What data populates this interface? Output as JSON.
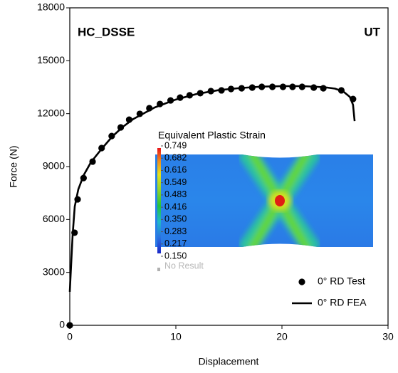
{
  "chart_data": {
    "type": "line",
    "xlabel": "Displacement",
    "ylabel": "Force (N)",
    "annotations": [
      "HC_DSSE",
      "UT"
    ],
    "xlim": [
      0,
      30
    ],
    "xticks": [
      0,
      10,
      20,
      30
    ],
    "ylim": [
      0,
      18000
    ],
    "yticks": [
      0,
      3000,
      6000,
      9000,
      12000,
      15000,
      18000
    ],
    "legend": "lower right",
    "series": [
      {
        "name": "0° RD Test",
        "color": "#000000",
        "marker": "circle",
        "x": [
          0,
          0.45,
          0.74,
          1.3,
          2.15,
          3.0,
          3.95,
          4.8,
          5.6,
          6.6,
          7.5,
          8.5,
          9.5,
          10.4,
          11.3,
          12.3,
          13.3,
          14.3,
          15.2,
          16.2,
          17.2,
          18.1,
          19.1,
          20.1,
          21.0,
          21.9,
          23.0,
          23.9,
          25.6,
          26.7
        ],
        "values": [
          0,
          5250,
          7140,
          8350,
          9280,
          10050,
          10730,
          11220,
          11660,
          11990,
          12310,
          12550,
          12750,
          12910,
          13040,
          13160,
          13280,
          13320,
          13400,
          13440,
          13480,
          13520,
          13520,
          13520,
          13520,
          13520,
          13480,
          13440,
          13320,
          12830
        ]
      },
      {
        "name": "0° RD FEA",
        "color": "#000000",
        "marker": "line",
        "x": [
          0,
          0.1,
          0.27,
          0.47,
          0.8,
          1.3,
          2.0,
          3.0,
          4.0,
          5.0,
          6.0,
          8.0,
          10.0,
          12.0,
          14.0,
          16.0,
          18.0,
          20.0,
          22.0,
          24.0,
          25.0,
          25.8,
          26.4,
          26.7,
          26.85
        ],
        "values": [
          1900,
          3100,
          5130,
          6740,
          7700,
          8500,
          9250,
          10000,
          10700,
          11250,
          11700,
          12350,
          12800,
          13120,
          13330,
          13450,
          13530,
          13560,
          13560,
          13500,
          13420,
          13250,
          12950,
          12500,
          11580
        ]
      }
    ],
    "inset": {
      "title": "Equivalent Plastic Strain",
      "scale_labels": [
        {
          "value": 0.749,
          "label": "0.749"
        },
        {
          "value": 0.682,
          "label": "0.682"
        },
        {
          "value": 0.616,
          "label": "0.616"
        },
        {
          "value": 0.549,
          "label": "0.549"
        },
        {
          "value": 0.483,
          "label": "0.483"
        },
        {
          "value": 0.416,
          "label": "0.416"
        },
        {
          "value": 0.35,
          "label": "0.350"
        },
        {
          "value": 0.283,
          "label": "0.283"
        },
        {
          "value": 0.217,
          "label": "0.217"
        },
        {
          "value": 0.15,
          "label": "0.150"
        }
      ],
      "no_result": "No Result"
    }
  }
}
